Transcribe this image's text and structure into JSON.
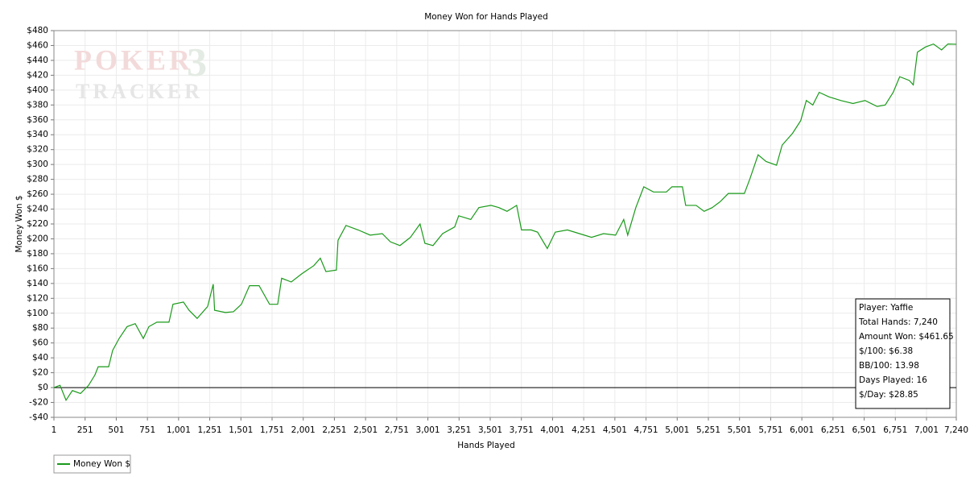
{
  "chart_data": {
    "type": "line",
    "title": "Money Won for Hands Played",
    "xlabel": "Hands Played",
    "ylabel": "Money Won $",
    "watermark": [
      "POKER",
      "3",
      "TRACKER"
    ],
    "x": [
      1,
      50,
      98,
      149,
      214,
      279,
      330,
      356,
      440,
      472,
      524,
      588,
      653,
      718,
      763,
      827,
      924,
      956,
      1040,
      1085,
      1150,
      1234,
      1279,
      1290,
      1376,
      1441,
      1505,
      1570,
      1647,
      1731,
      1796,
      1828,
      1905,
      1989,
      2086,
      2138,
      2183,
      2267,
      2280,
      2344,
      2441,
      2538,
      2635,
      2700,
      2777,
      2861,
      2938,
      2977,
      3042,
      3119,
      3216,
      3248,
      3345,
      3410,
      3507,
      3571,
      3636,
      3713,
      3752,
      3829,
      3881,
      3959,
      4023,
      4120,
      4217,
      4314,
      4410,
      4507,
      4572,
      4604,
      4669,
      4733,
      4811,
      4914,
      4959,
      5043,
      5069,
      5153,
      5217,
      5282,
      5346,
      5411,
      5476,
      5540,
      5585,
      5650,
      5714,
      5798,
      5843,
      5927,
      5992,
      6037,
      6089,
      6140,
      6218,
      6315,
      6411,
      6508,
      6605,
      6670,
      6734,
      6786,
      6863,
      6895,
      6928,
      6993,
      7057,
      7122,
      7173,
      7240
    ],
    "series": [
      {
        "name": "Money Won $",
        "color": "#1a9a1a",
        "values": [
          0,
          3,
          -17,
          -4,
          -8,
          3,
          17,
          28,
          28,
          50,
          66,
          82,
          86,
          66,
          82,
          88,
          88,
          112,
          115,
          104,
          93,
          109,
          139,
          104,
          101,
          102,
          112,
          137,
          137,
          112,
          112,
          147,
          142,
          153,
          164,
          174,
          156,
          158,
          198,
          218,
          212,
          205,
          207,
          196,
          191,
          202,
          220,
          194,
          191,
          207,
          216,
          231,
          226,
          242,
          245,
          242,
          237,
          245,
          212,
          212,
          209,
          187,
          209,
          212,
          207,
          202,
          207,
          205,
          226,
          205,
          242,
          270,
          263,
          263,
          270,
          270,
          245,
          245,
          237,
          242,
          250,
          261,
          261,
          261,
          281,
          313,
          304,
          299,
          326,
          342,
          359,
          386,
          380,
          397,
          391,
          386,
          382,
          386,
          378,
          380,
          397,
          418,
          413,
          407,
          451,
          458,
          462,
          454,
          462,
          461.65
        ]
      }
    ],
    "xlim": [
      1,
      7240
    ],
    "xticks": [
      1,
      251,
      501,
      751,
      {
        "value": 1001,
        "label": "1,001"
      },
      {
        "value": 1251,
        "label": "1,251"
      },
      {
        "value": 1501,
        "label": "1,501"
      },
      {
        "value": 1751,
        "label": "1,751"
      },
      {
        "value": 2001,
        "label": "2,001"
      },
      {
        "value": 2251,
        "label": "2,251"
      },
      {
        "value": 2501,
        "label": "2,501"
      },
      {
        "value": 2751,
        "label": "2,751"
      },
      {
        "value": 3001,
        "label": "3,001"
      },
      {
        "value": 3251,
        "label": "3,251"
      },
      {
        "value": 3501,
        "label": "3,501"
      },
      {
        "value": 3751,
        "label": "3,751"
      },
      {
        "value": 4001,
        "label": "4,001"
      },
      {
        "value": 4251,
        "label": "4,251"
      },
      {
        "value": 4501,
        "label": "4,501"
      },
      {
        "value": 4751,
        "label": "4,751"
      },
      {
        "value": 5001,
        "label": "5,001"
      },
      {
        "value": 5251,
        "label": "5,251"
      },
      {
        "value": 5501,
        "label": "5,501"
      },
      {
        "value": 5751,
        "label": "5,751"
      },
      {
        "value": 6001,
        "label": "6,001"
      },
      {
        "value": 6251,
        "label": "6,251"
      },
      {
        "value": 6501,
        "label": "6,501"
      },
      {
        "value": 6751,
        "label": "6,751"
      },
      {
        "value": 7001,
        "label": "7,001"
      },
      {
        "value": 7240,
        "label": "7,240"
      }
    ],
    "ylim": [
      -40,
      480
    ],
    "yticks": [
      {
        "value": -40,
        "label": "-$40"
      },
      {
        "value": -20,
        "label": "-$20"
      },
      {
        "value": 0,
        "label": "$0"
      },
      {
        "value": 20,
        "label": "$20"
      },
      {
        "value": 40,
        "label": "$40"
      },
      {
        "value": 60,
        "label": "$60"
      },
      {
        "value": 80,
        "label": "$80"
      },
      {
        "value": 100,
        "label": "$100"
      },
      {
        "value": 120,
        "label": "$120"
      },
      {
        "value": 140,
        "label": "$140"
      },
      {
        "value": 160,
        "label": "$160"
      },
      {
        "value": 180,
        "label": "$180"
      },
      {
        "value": 200,
        "label": "$200"
      },
      {
        "value": 220,
        "label": "$220"
      },
      {
        "value": 240,
        "label": "$240"
      },
      {
        "value": 260,
        "label": "$260"
      },
      {
        "value": 280,
        "label": "$280"
      },
      {
        "value": 300,
        "label": "$300"
      },
      {
        "value": 320,
        "label": "$320"
      },
      {
        "value": 340,
        "label": "$340"
      },
      {
        "value": 360,
        "label": "$360"
      },
      {
        "value": 380,
        "label": "$380"
      },
      {
        "value": 400,
        "label": "$400"
      },
      {
        "value": 420,
        "label": "$420"
      },
      {
        "value": 440,
        "label": "$440"
      },
      {
        "value": 460,
        "label": "$460"
      },
      {
        "value": 480,
        "label": "$480"
      }
    ],
    "grid": true,
    "legend": "bottom-left",
    "stats": [
      "Player: Yaffie",
      "Total Hands: 7,240",
      "Amount Won: $461.65",
      "$/100: $6.38",
      "BB/100: 13.98",
      "Days Played: 16",
      "$/Day: $28.85"
    ]
  }
}
